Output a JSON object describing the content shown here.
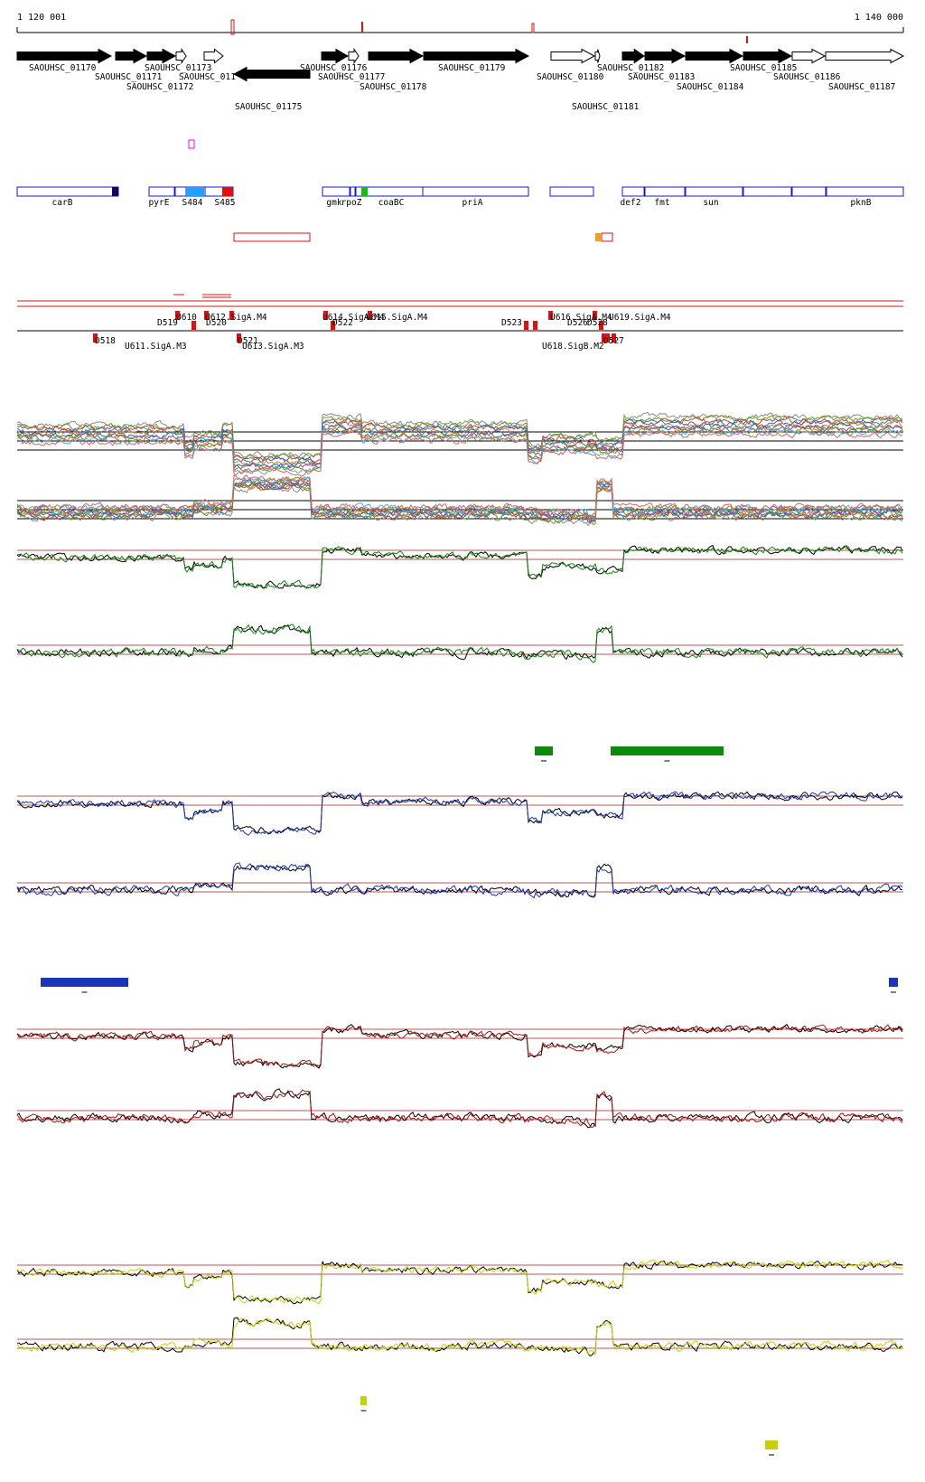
{
  "coordinates": {
    "start_label": "1 120 001",
    "end_label": "1 140 000",
    "start": 1120001,
    "end": 1140000
  },
  "colors": {
    "gene_filled": "#000000",
    "gene_open": "#ffffff",
    "region_box": "#1a1acc",
    "feature_red": "#e01010",
    "green_track": "#0b8a0b",
    "blue_track": "#1a35b8",
    "red_track": "#b01010",
    "yellow_track": "#c8d200",
    "reference_line": "#a02020",
    "black_line": "#000000",
    "marker_magenta": "#ff00ff",
    "marker_orange": "#f0a020",
    "marker_cyan": "#20a0ff",
    "marker_green": "#10c010",
    "marker_navy": "#0a0a60"
  },
  "genes": [
    {
      "name": "SAOUHSC_01170",
      "strand": "+",
      "filled": true
    },
    {
      "name": "SAOUHSC_01171",
      "strand": "+",
      "filled": true
    },
    {
      "name": "SAOUHSC_01172",
      "strand": "+",
      "filled": true
    },
    {
      "name": "SAOUHSC_01173",
      "strand": "+",
      "filled": false
    },
    {
      "name": "SAOUHSC_011",
      "strand": "+",
      "filled": false
    },
    {
      "name": "SAOUHSC_01175",
      "strand": "-",
      "filled": true
    },
    {
      "name": "SAOUHSC_01176",
      "strand": "+",
      "filled": true
    },
    {
      "name": "SAOUHSC_01177",
      "strand": "+",
      "filled": false
    },
    {
      "name": "SAOUHSC_01178",
      "strand": "+",
      "filled": true
    },
    {
      "name": "SAOUHSC_01179",
      "strand": "+",
      "filled": true
    },
    {
      "name": "SAOUHSC_01180",
      "strand": "+",
      "filled": false
    },
    {
      "name": "SAOUHSC_01181",
      "strand": "+",
      "filled": false
    },
    {
      "name": "SAOUHSC_01182",
      "strand": "+",
      "filled": true
    },
    {
      "name": "SAOUHSC_01183",
      "strand": "+",
      "filled": true
    },
    {
      "name": "SAOUHSC_01184",
      "strand": "+",
      "filled": true
    },
    {
      "name": "SAOUHSC_01185",
      "strand": "+",
      "filled": true
    },
    {
      "name": "SAOUHSC_01186",
      "strand": "+",
      "filled": false
    },
    {
      "name": "SAOUHSC_01187",
      "strand": "+",
      "filled": false
    }
  ],
  "gene_symbols": [
    "carB",
    "pyrE",
    "S484",
    "S485",
    "gmk",
    "rpoZ",
    "coaBC",
    "priA",
    "def2",
    "fmt",
    "sun",
    "pknB"
  ],
  "features_top": [
    "U610",
    "U612.SigA.M4",
    "D519",
    "D520",
    "D518",
    "U611.SigA.M3",
    "D521",
    "U613.SigA.M3",
    "U614.SigA.M4",
    "U615.SigA.M4",
    "D522",
    "D523",
    "U616.SigA.M4",
    "D526",
    "D528",
    "U619.SigA.M4",
    "U618.SigB.M2",
    "D527"
  ],
  "tracks": {
    "multi_condition": 2,
    "green_pair": 2,
    "blue_pair": 2,
    "red_pair": 2,
    "yellow_pair": 2
  },
  "highlight_bars": [
    "green",
    "green",
    "blue",
    "blue",
    "yellow",
    "yellow"
  ]
}
